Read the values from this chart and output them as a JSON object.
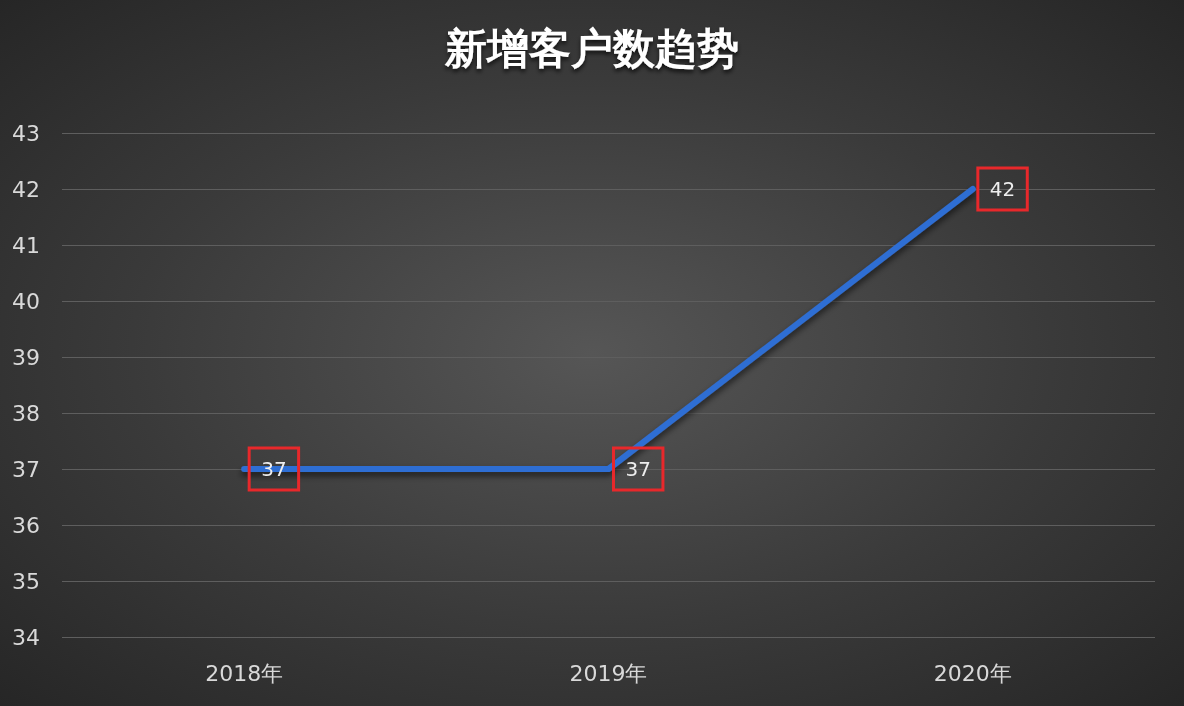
{
  "chart_data": {
    "type": "line",
    "title": "新增客户数趋势",
    "categories": [
      "2018年",
      "2019年",
      "2020年"
    ],
    "series": [
      {
        "color": "#2f6ed3",
        "values": [
          37,
          37,
          42
        ]
      }
    ],
    "ylim": [
      34,
      43
    ],
    "yticks": [
      34,
      35,
      36,
      37,
      38,
      39,
      40,
      41,
      42,
      43
    ],
    "grid": "y",
    "marker": "none",
    "line_style": "solid",
    "data_labels": true
  }
}
